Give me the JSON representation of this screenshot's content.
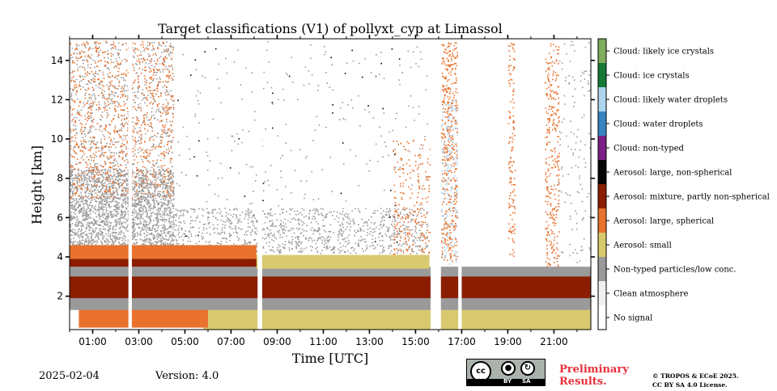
{
  "chart_data": {
    "type": "heatmap",
    "title": "Target classifications (V1) of pollyxt_cyp at Limassol",
    "xlabel": "Time [UTC]",
    "ylabel": "Height [km]",
    "xlim_hours": [
      0,
      22.6
    ],
    "ylim_km": [
      0.3,
      15.1
    ],
    "x_ticks": [
      {
        "hour": 1,
        "label": "01:00"
      },
      {
        "hour": 3,
        "label": "03:00"
      },
      {
        "hour": 5,
        "label": "05:00"
      },
      {
        "hour": 7,
        "label": "07:00"
      },
      {
        "hour": 9,
        "label": "09:00"
      },
      {
        "hour": 11,
        "label": "11:00"
      },
      {
        "hour": 13,
        "label": "13:00"
      },
      {
        "hour": 15,
        "label": "15:00"
      },
      {
        "hour": 17,
        "label": "17:00"
      },
      {
        "hour": 19,
        "label": "19:00"
      },
      {
        "hour": 21,
        "label": "21:00"
      }
    ],
    "y_ticks": [
      {
        "km": 2,
        "label": "2"
      },
      {
        "km": 4,
        "label": "4"
      },
      {
        "km": 6,
        "label": "6"
      },
      {
        "km": 8,
        "label": "8"
      },
      {
        "km": 10,
        "label": "10"
      },
      {
        "km": 12,
        "label": "12"
      },
      {
        "km": 14,
        "label": "14"
      }
    ],
    "classes": [
      {
        "label": "No signal",
        "color": "#ffffff"
      },
      {
        "label": "Clean atmosphere",
        "color": "#f0f0f0"
      },
      {
        "label": "Non-typed particles/low conc.",
        "color": "#9a9a9a"
      },
      {
        "label": "Aerosol: small",
        "color": "#d9c96e"
      },
      {
        "label": "Aerosol: large, spherical",
        "color": "#e8722e"
      },
      {
        "label": "Aerosol: mixture, partly non-spherical",
        "color": "#8b1d00"
      },
      {
        "label": "Aerosol: large, non-spherical",
        "color": "#050505"
      },
      {
        "label": "Cloud: non-typed",
        "color": "#7c1f86"
      },
      {
        "label": "Cloud: water droplets",
        "color": "#3584c4"
      },
      {
        "label": "Cloud: likely water droplets",
        "color": "#aed5f0"
      },
      {
        "label": "Cloud: ice crystals",
        "color": "#157a36"
      },
      {
        "label": "Cloud: likely ice crystals",
        "color": "#7fae5b"
      }
    ],
    "layers": [
      {
        "class": "Aerosol: small",
        "from_hour": 5.8,
        "to_hour": 22.6,
        "bottom_km": 0.3,
        "top_km": 1.4
      },
      {
        "class": "Aerosol: large, spherical",
        "from_hour": 0.4,
        "to_hour": 6.0,
        "bottom_km": 0.4,
        "top_km": 1.4
      },
      {
        "class": "Non-typed particles/low conc.",
        "from_hour": 0,
        "to_hour": 22.6,
        "bottom_km": 1.3,
        "top_km": 2.0
      },
      {
        "class": "Aerosol: mixture, partly non-spherical",
        "from_hour": 0,
        "to_hour": 22.6,
        "bottom_km": 1.9,
        "top_km": 3.1
      },
      {
        "class": "Non-typed particles/low conc.",
        "from_hour": 0,
        "to_hour": 22.6,
        "bottom_km": 3.0,
        "top_km": 3.5
      },
      {
        "class": "Aerosol: mixture, partly non-spherical",
        "from_hour": 0,
        "to_hour": 8.5,
        "bottom_km": 3.5,
        "top_km": 3.9
      },
      {
        "class": "Aerosol: small",
        "from_hour": 8.1,
        "to_hour": 15.6,
        "bottom_km": 3.4,
        "top_km": 4.1
      },
      {
        "class": "Aerosol: large, spherical",
        "from_hour": 0,
        "to_hour": 8.1,
        "bottom_km": 3.9,
        "top_km": 4.6
      }
    ],
    "gaps_hours": [
      [
        2.55,
        2.7
      ],
      [
        8.15,
        8.35
      ],
      [
        15.65,
        16.1
      ],
      [
        16.85,
        17.0
      ]
    ],
    "grid": false,
    "legend": "colorbar-right"
  },
  "footer": {
    "date": "2025-02-04",
    "version": "Version: 4.0",
    "preliminary_line1": "Preliminary",
    "preliminary_line2": "Results.",
    "copyright_line1": "© TROPOS & ECoE 2025.",
    "copyright_line2": "CC BY SA 4.0 License.",
    "cc_badge": {
      "cc": "cc",
      "by": "BY",
      "sa": "SA"
    }
  }
}
